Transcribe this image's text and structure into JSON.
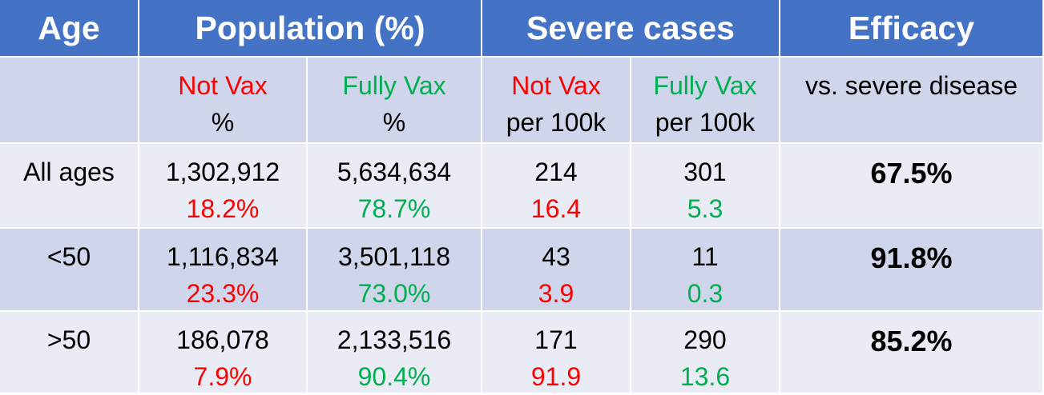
{
  "header": {
    "age": "Age",
    "population": "Population (%)",
    "severe": "Severe cases",
    "efficacy": "Efficacy"
  },
  "subheader": {
    "pop_not_vax": "Not Vax",
    "pop_not_vax_unit": "%",
    "pop_fully_vax": "Fully Vax",
    "pop_fully_vax_unit": "%",
    "sev_not_vax": "Not Vax",
    "sev_not_vax_unit": "per 100k",
    "sev_fully_vax": "Fully Vax",
    "sev_fully_vax_unit": "per 100k",
    "efficacy_note": "vs. severe disease"
  },
  "rows": [
    {
      "age": "All ages",
      "not_vax_count": "1,302,912",
      "not_vax_pct": "18.2%",
      "fully_vax_count": "5,634,634",
      "fully_vax_pct": "78.7%",
      "sev_not_vax_count": "214",
      "sev_not_vax_rate": "16.4",
      "sev_fully_vax_count": "301",
      "sev_fully_vax_rate": "5.3",
      "efficacy": "67.5%"
    },
    {
      "age": "<50",
      "not_vax_count": "1,116,834",
      "not_vax_pct": "23.3%",
      "fully_vax_count": "3,501,118",
      "fully_vax_pct": "73.0%",
      "sev_not_vax_count": "43",
      "sev_not_vax_rate": "3.9",
      "sev_fully_vax_count": "11",
      "sev_fully_vax_rate": "0.3",
      "efficacy": "91.8%"
    },
    {
      "age": ">50",
      "not_vax_count": "186,078",
      "not_vax_pct": "7.9%",
      "fully_vax_count": "2,133,516",
      "fully_vax_pct": "90.4%",
      "sev_not_vax_count": "171",
      "sev_not_vax_rate": "91.9",
      "sev_fully_vax_count": "290",
      "sev_fully_vax_rate": "13.6",
      "efficacy": "85.2%"
    }
  ],
  "colors": {
    "header_bg": "#4472c4",
    "row_dark": "#cfd5ea",
    "row_light": "#e9ebf5",
    "not_vax": "#ff0000",
    "fully_vax": "#00b050"
  }
}
